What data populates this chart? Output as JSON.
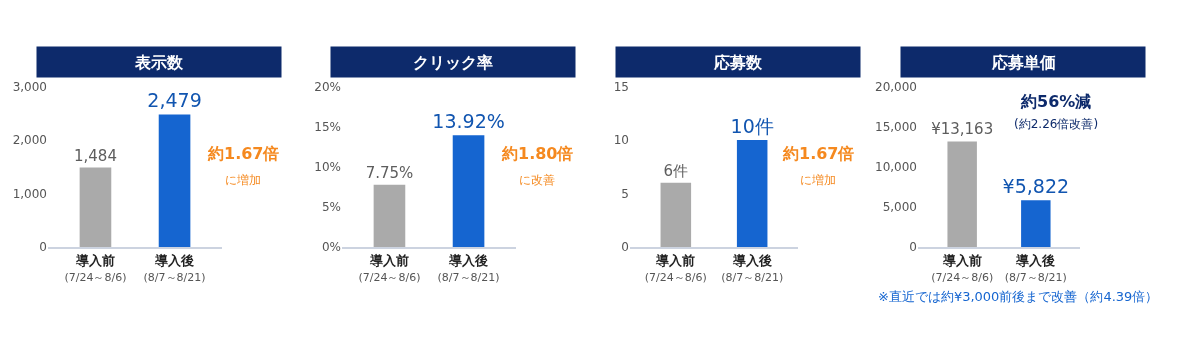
{
  "chart_data": [
    {
      "type": "bar",
      "title": "表示数",
      "categories": [
        "導入前\n(7/24～8/6)",
        "導入後\n(8/7～8/21)"
      ],
      "values": [
        1484,
        2479
      ],
      "colors": [
        "#aaaaaa",
        "#1565d0"
      ],
      "value_labels": [
        "1,484",
        "2,479"
      ],
      "ylim": [
        0,
        3000
      ],
      "yticks": [
        {
          "value": 0,
          "label": "0"
        },
        {
          "value": 1000,
          "label": "1,000"
        },
        {
          "value": 2000,
          "label": "2,000"
        },
        {
          "value": 3000,
          "label": "3,000"
        }
      ],
      "annotations": [
        "約1.67倍",
        "に増加"
      ]
    },
    {
      "type": "bar",
      "title": "クリック率",
      "categories": [
        "導入前\n(7/24～8/6)",
        "導入後\n(8/7～8/21)"
      ],
      "values": [
        7.75,
        13.92
      ],
      "colors": [
        "#aaaaaa",
        "#1565d0"
      ],
      "value_labels": [
        "7.75%",
        "13.92%"
      ],
      "ylim": [
        0,
        20
      ],
      "yticks": [
        {
          "value": 0,
          "label": "0%"
        },
        {
          "value": 5,
          "label": "5%"
        },
        {
          "value": 10,
          "label": "10%"
        },
        {
          "value": 15,
          "label": "15%"
        },
        {
          "value": 20,
          "label": "20%"
        }
      ],
      "annotations": [
        "約1.80倍",
        "に改善"
      ]
    },
    {
      "type": "bar",
      "title": "応募数",
      "categories": [
        "導入前\n(7/24～8/6)",
        "導入後\n(8/7～8/21)"
      ],
      "values": [
        6,
        10
      ],
      "colors": [
        "#aaaaaa",
        "#1565d0"
      ],
      "value_labels": [
        "6件",
        "10件"
      ],
      "ylim": [
        0,
        15
      ],
      "yticks": [
        0,
        5,
        10,
        15
      ],
      "annotations": [
        "約1.67倍",
        "に増加"
      ]
    },
    {
      "type": "bar",
      "title": "応募単価",
      "categories": [
        "導入前\n(7/24～8/6)",
        "導入後\n(8/7～8/21)"
      ],
      "values": [
        13163,
        5822
      ],
      "colors": [
        "#aaaaaa",
        "#1565d0"
      ],
      "value_labels": [
        "¥13,163",
        "¥5,822"
      ],
      "ylim": [
        0,
        20000
      ],
      "yticks": [
        {
          "value": 0,
          "label": "0"
        },
        {
          "value": 5000,
          "label": "5,000"
        },
        {
          "value": 10000,
          "label": "10,000"
        },
        {
          "value": 15000,
          "label": "15,000"
        },
        {
          "value": 20000,
          "label": "20,000"
        }
      ],
      "annotations": [
        "約56%減",
        "(約2.26倍改善)",
        "※直近では約¥3,000前後まで改善（約4.39倍）"
      ]
    }
  ]
}
